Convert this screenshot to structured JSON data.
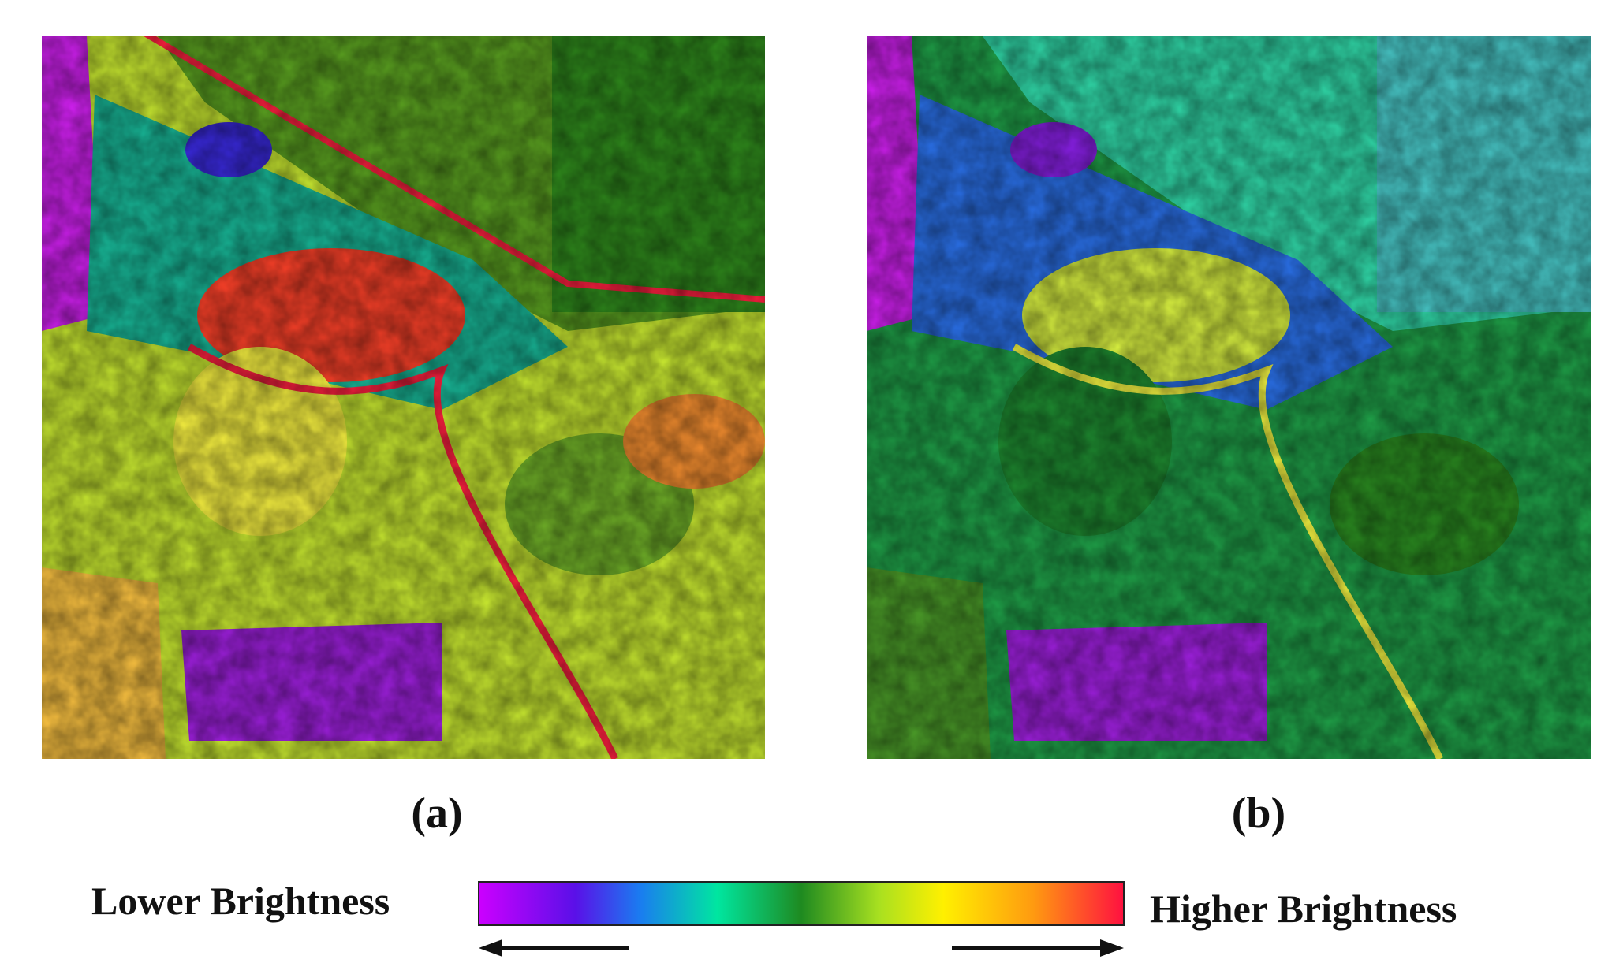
{
  "panels": [
    {
      "label": "(a)"
    },
    {
      "label": "(b)"
    }
  ],
  "colorbar": {
    "low_label": "Lower Brightness",
    "high_label": "Higher Brightness"
  }
}
